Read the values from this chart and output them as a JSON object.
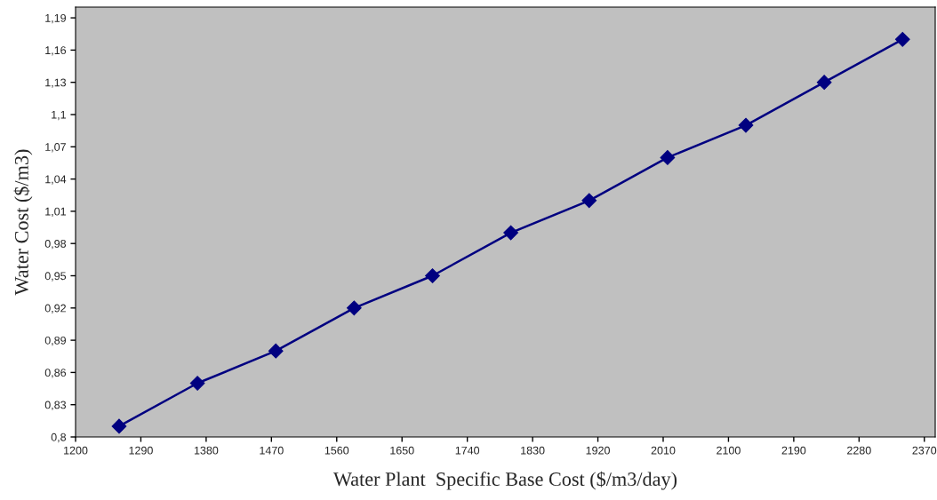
{
  "chart_data": {
    "type": "line",
    "xlabel": "Water Plant  Specific Base Cost ($/m3/day)",
    "ylabel": "Water Cost ($/m3)",
    "x": [
      1260,
      1368,
      1476,
      1584,
      1692,
      1800,
      1908,
      2016,
      2124,
      2232,
      2340
    ],
    "series": [
      {
        "color": "#000080",
        "values": [
          0.81,
          0.85,
          0.88,
          0.92,
          0.95,
          0.99,
          1.02,
          1.06,
          1.09,
          1.13,
          1.17
        ]
      }
    ],
    "xlim": [
      1200,
      2385
    ],
    "xticks": [
      1200,
      1290,
      1380,
      1470,
      1560,
      1650,
      1740,
      1830,
      1920,
      2010,
      2100,
      2190,
      2280,
      2370
    ],
    "ylim": [
      0.8,
      1.2
    ],
    "yticks": [
      {
        "value": 0.8,
        "label": "0,8"
      },
      {
        "value": 0.83,
        "label": "0,83"
      },
      {
        "value": 0.86,
        "label": "0,86"
      },
      {
        "value": 0.89,
        "label": "0,89"
      },
      {
        "value": 0.92,
        "label": "0,92"
      },
      {
        "value": 0.95,
        "label": "0,95"
      },
      {
        "value": 0.98,
        "label": "0,98"
      },
      {
        "value": 1.01,
        "label": "1,01"
      },
      {
        "value": 1.04,
        "label": "1,04"
      },
      {
        "value": 1.07,
        "label": "1,07"
      },
      {
        "value": 1.1,
        "label": "1,1"
      },
      {
        "value": 1.13,
        "label": "1,13"
      },
      {
        "value": 1.16,
        "label": "1,16"
      },
      {
        "value": 1.19,
        "label": "1,19"
      }
    ],
    "marker": "diamond",
    "line_style": "solid",
    "grid": false,
    "legend": false
  }
}
